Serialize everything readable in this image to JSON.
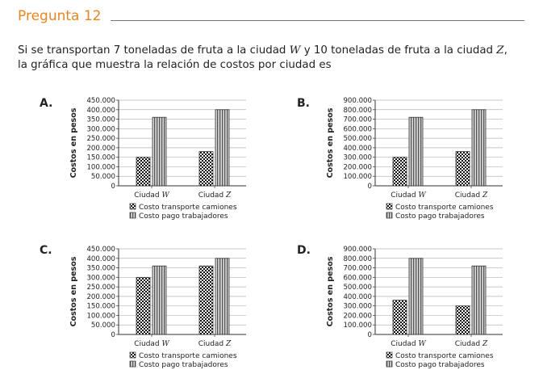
{
  "title": "Pregunta 12",
  "question": {
    "p1": "Si se transportan 7 toneladas de fruta a la ciudad ",
    "w": "W",
    "p2": " y 10 toneladas de fruta a la ciudad ",
    "z": "Z",
    "p3": ",",
    "line2": "la gráfica que muestra la relación de costos por ciudad es"
  },
  "chart_data": [
    {
      "option": "A.",
      "type": "bar",
      "categories": [
        {
          "prefix": "Ciudad ",
          "var": "W"
        },
        {
          "prefix": "Ciudad ",
          "var": "Z"
        }
      ],
      "ylabel": "Costos en pesos",
      "ylim": [
        0,
        450000
      ],
      "yticks": [
        "450.000",
        "400.000",
        "350.000",
        "300.000",
        "250.000",
        "200.000",
        "150.000",
        "100.000",
        "50.000",
        "0"
      ],
      "series": [
        {
          "name": "Costo transporte camiones",
          "values": [
            150000,
            180000
          ],
          "pattern": "check"
        },
        {
          "name": "Costo pago trabajadores",
          "values": [
            360000,
            400000
          ],
          "pattern": "stripe"
        }
      ]
    },
    {
      "option": "B.",
      "type": "bar",
      "categories": [
        {
          "prefix": "Ciudad ",
          "var": "W"
        },
        {
          "prefix": "Ciudad ",
          "var": "Z"
        }
      ],
      "ylabel": "Costos en pesos",
      "ylim": [
        0,
        900000
      ],
      "yticks": [
        "900.000",
        "800.000",
        "700.000",
        "600.000",
        "500.000",
        "400.000",
        "300.000",
        "200.000",
        "100.000",
        "0"
      ],
      "series": [
        {
          "name": "Costo transporte camiones",
          "values": [
            300000,
            360000
          ],
          "pattern": "check"
        },
        {
          "name": "Costo pago trabajadores",
          "values": [
            720000,
            800000
          ],
          "pattern": "stripe"
        }
      ]
    },
    {
      "option": "C.",
      "type": "bar",
      "categories": [
        {
          "prefix": "Ciudad ",
          "var": "W"
        },
        {
          "prefix": "Ciudad ",
          "var": "Z"
        }
      ],
      "ylabel": "Costos en pesos",
      "ylim": [
        0,
        450000
      ],
      "yticks": [
        "450.000",
        "400.000",
        "350.000",
        "300.000",
        "250.000",
        "200.000",
        "150.000",
        "100.000",
        "50.000",
        "0"
      ],
      "series": [
        {
          "name": "Costo transporte camiones",
          "values": [
            300000,
            360000
          ],
          "pattern": "check"
        },
        {
          "name": "Costo pago trabajadores",
          "values": [
            360000,
            400000
          ],
          "pattern": "stripe"
        }
      ]
    },
    {
      "option": "D.",
      "type": "bar",
      "categories": [
        {
          "prefix": "Ciudad ",
          "var": "W"
        },
        {
          "prefix": "Ciudad ",
          "var": "Z"
        }
      ],
      "ylabel": "Costos en pesos",
      "ylim": [
        0,
        900000
      ],
      "yticks": [
        "900.000",
        "800.000",
        "700.000",
        "600.000",
        "500.000",
        "400.000",
        "300.000",
        "200.000",
        "100.000",
        "0"
      ],
      "series": [
        {
          "name": "Costo transporte camiones",
          "values": [
            360000,
            300000
          ],
          "pattern": "check"
        },
        {
          "name": "Costo pago trabajadores",
          "values": [
            800000,
            720000
          ],
          "pattern": "stripe"
        }
      ]
    }
  ]
}
